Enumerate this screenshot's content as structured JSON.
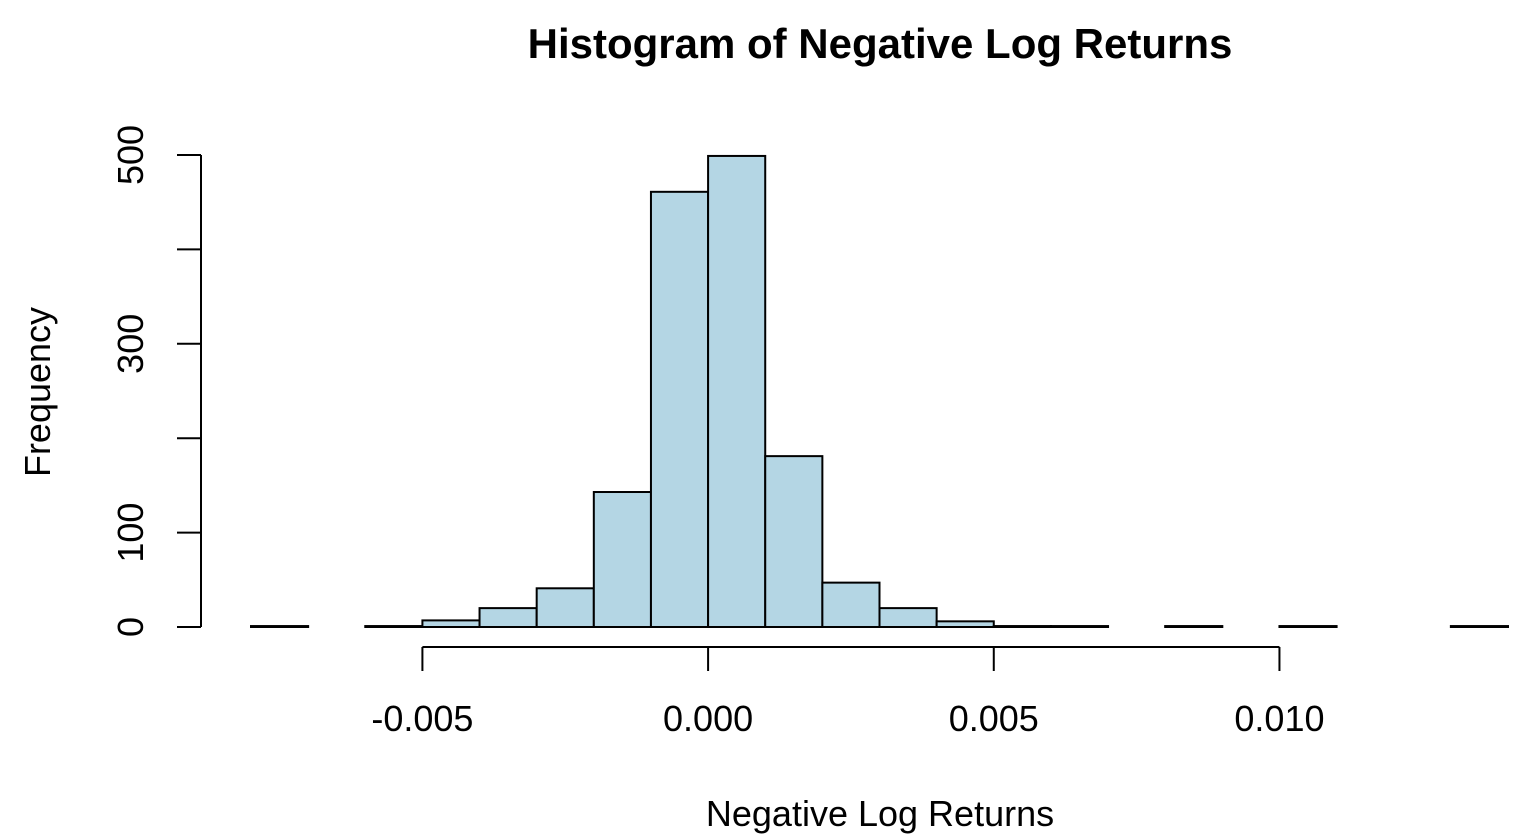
{
  "chart_data": {
    "type": "bar",
    "title": "Histogram of Negative Log Returns",
    "xlabel": "Negative Log Returns",
    "ylabel": "Frequency",
    "bar_color": "#b4d6e4",
    "bin_edges": [
      -0.008,
      -0.007,
      -0.006,
      -0.005,
      -0.004,
      -0.003,
      -0.002,
      -0.001,
      0.0,
      0.001,
      0.002,
      0.003,
      0.004,
      0.005,
      0.006,
      0.007,
      0.008,
      0.009,
      0.01,
      0.011,
      0.012,
      0.013,
      0.014
    ],
    "values": [
      1,
      0,
      1,
      7,
      20,
      41,
      143,
      461,
      499,
      181,
      47,
      20,
      6,
      1,
      1,
      0,
      1,
      0,
      1,
      0,
      0,
      1
    ],
    "xlim": [
      -0.008,
      0.014
    ],
    "ylim": [
      0,
      500
    ],
    "x_ticks": [
      -0.005,
      0.0,
      0.005,
      0.01
    ],
    "x_tick_labels": [
      "-0.005",
      "0.000",
      "0.005",
      "0.010"
    ],
    "y_ticks": [
      0,
      100,
      200,
      300,
      400,
      500
    ],
    "y_tick_labels": [
      "0",
      "100",
      "",
      "300",
      "",
      "500"
    ]
  }
}
